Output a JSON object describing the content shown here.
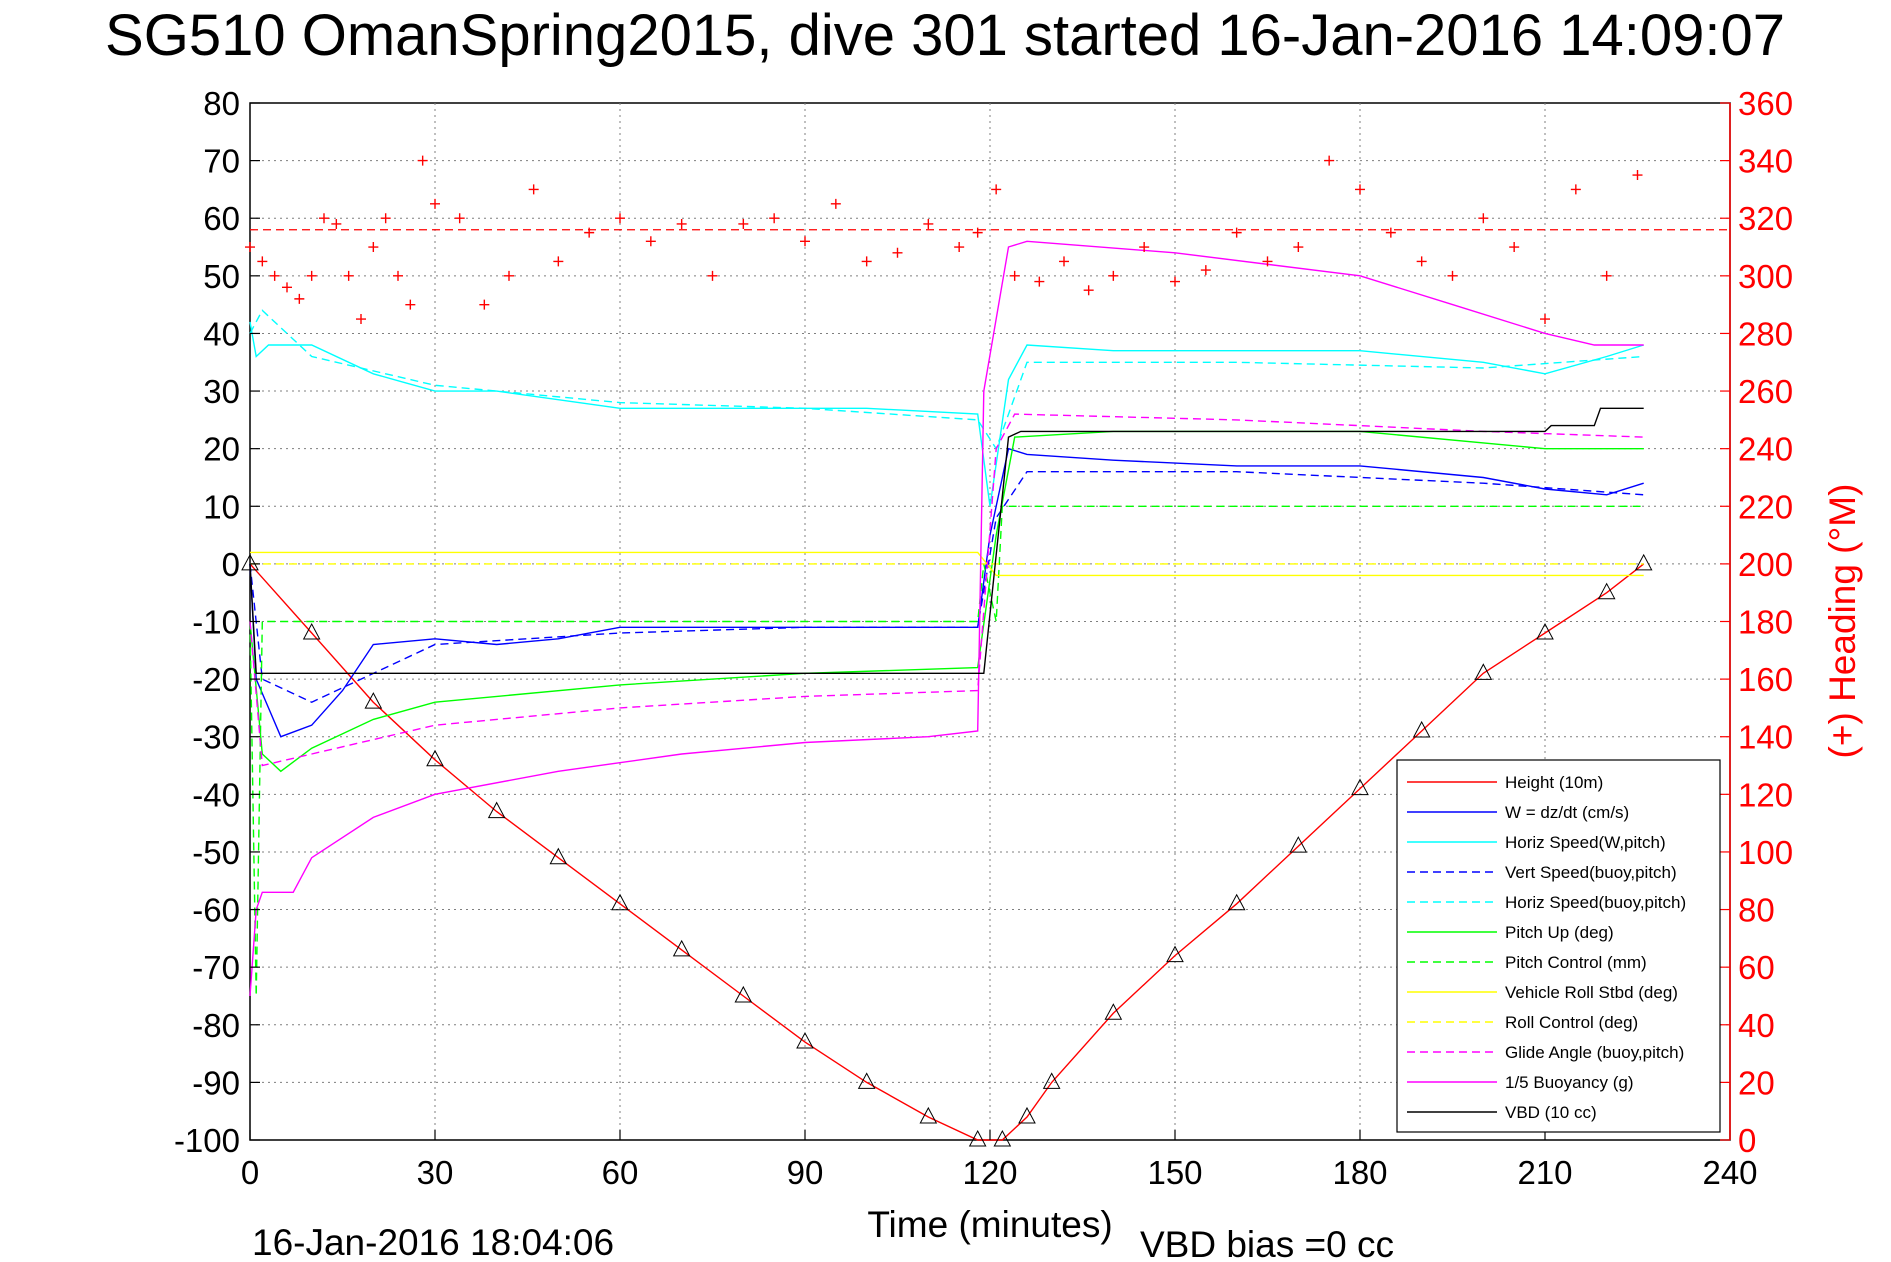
{
  "chart_data": {
    "type": "line",
    "title": "SG510 OmanSpring2015, dive 301 started 16-Jan-2016 14:09:07",
    "xlabel": "Time (minutes)",
    "ylabel_right": "(+) Heading (°M)",
    "footer_left": "16-Jan-2016 18:04:06",
    "footer_right": "VBD bias =0 cc",
    "xlim": [
      0,
      240
    ],
    "ylim_left": [
      -100,
      80
    ],
    "ylim_right": [
      0,
      360
    ],
    "xticks": [
      "0",
      "30",
      "60",
      "90",
      "120",
      "150",
      "180",
      "210",
      "240"
    ],
    "yticks_left": [
      "80",
      "70",
      "60",
      "50",
      "40",
      "30",
      "20",
      "10",
      "0",
      "-10",
      "-20",
      "-30",
      "-40",
      "-50",
      "-60",
      "-70",
      "-80",
      "-90",
      "-100"
    ],
    "yticks_right": [
      "360",
      "340",
      "320",
      "300",
      "280",
      "260",
      "240",
      "220",
      "200",
      "180",
      "160",
      "140",
      "120",
      "100",
      "80",
      "60",
      "40",
      "20",
      "0"
    ],
    "grid": true,
    "legend_position": "bottom-right",
    "heading_reference": 316,
    "series": [
      {
        "name": "Height (10m)",
        "color": "#ff0000",
        "style": "solid",
        "x": [
          0,
          10,
          20,
          30,
          40,
          50,
          60,
          70,
          80,
          90,
          100,
          110,
          118,
          122,
          126,
          130,
          140,
          150,
          160,
          170,
          180,
          190,
          200,
          210,
          220,
          226
        ],
        "y": [
          0,
          -12,
          -24,
          -34,
          -43,
          -51,
          -59,
          -67,
          -75,
          -83,
          -90,
          -96,
          -100,
          -100,
          -96,
          -90,
          -78,
          -68,
          -59,
          -49,
          -39,
          -29,
          -19,
          -12,
          -5,
          0
        ]
      },
      {
        "name": "W = dz/dt (cm/s)",
        "color": "#0000ff",
        "style": "solid",
        "x": [
          0,
          1,
          3,
          5,
          10,
          15,
          20,
          30,
          40,
          50,
          60,
          80,
          100,
          118,
          120,
          123,
          126,
          140,
          160,
          180,
          200,
          210,
          220,
          226
        ],
        "y": [
          0,
          -20,
          -25,
          -30,
          -28,
          -22,
          -14,
          -13,
          -14,
          -13,
          -11,
          -11,
          -11,
          -11,
          5,
          20,
          19,
          18,
          17,
          17,
          15,
          13,
          12,
          14
        ]
      },
      {
        "name": "Horiz Speed(W,pitch)",
        "color": "#00ffff",
        "style": "solid",
        "x": [
          0,
          1,
          3,
          10,
          20,
          30,
          40,
          60,
          80,
          100,
          118,
          120,
          123,
          126,
          140,
          160,
          180,
          200,
          210,
          220,
          226
        ],
        "y": [
          42,
          36,
          38,
          38,
          33,
          30,
          30,
          27,
          27,
          27,
          26,
          10,
          32,
          38,
          37,
          37,
          37,
          35,
          33,
          36,
          38
        ]
      },
      {
        "name": "Vert Speed(buoy,pitch)",
        "color": "#0000ff",
        "style": "dashed",
        "x": [
          0,
          2,
          10,
          30,
          60,
          90,
          118,
          121,
          126,
          160,
          200,
          226
        ],
        "y": [
          0,
          -20,
          -24,
          -14,
          -12,
          -11,
          -11,
          8,
          16,
          16,
          14,
          12
        ]
      },
      {
        "name": "Horiz Speed(buoy,pitch)",
        "color": "#00ffff",
        "style": "dashed",
        "x": [
          0,
          2,
          10,
          30,
          60,
          90,
          118,
          121,
          126,
          160,
          200,
          226
        ],
        "y": [
          40,
          44,
          36,
          31,
          28,
          27,
          25,
          20,
          35,
          35,
          34,
          36
        ]
      },
      {
        "name": "Pitch Up (deg)",
        "color": "#00ff00",
        "style": "solid",
        "x": [
          0,
          2,
          5,
          10,
          20,
          30,
          60,
          90,
          118,
          121,
          124,
          140,
          180,
          210,
          226
        ],
        "y": [
          -10,
          -33,
          -36,
          -32,
          -27,
          -24,
          -21,
          -19,
          -18,
          5,
          22,
          23,
          23,
          20,
          20
        ]
      },
      {
        "name": "Pitch Control (mm)",
        "color": "#00ff00",
        "style": "dashed",
        "x": [
          0,
          1,
          2,
          3,
          118,
          119,
          121,
          122,
          226
        ],
        "y": [
          -10,
          -75,
          -10,
          -10,
          -10,
          0,
          -10,
          10,
          10
        ]
      },
      {
        "name": "Vehicle Roll Stbd (deg)",
        "color": "#ffff00",
        "style": "solid",
        "x": [
          0,
          118,
          121,
          226
        ],
        "y": [
          2,
          2,
          -2,
          -2
        ]
      },
      {
        "name": "Roll Control (deg)",
        "color": "#ffff00",
        "style": "dashed",
        "x": [
          0,
          118,
          121,
          226
        ],
        "y": [
          0,
          0,
          0,
          0
        ]
      },
      {
        "name": "Glide Angle (buoy,pitch)",
        "color": "#ff00ff",
        "style": "dashed",
        "x": [
          0,
          2,
          10,
          30,
          60,
          90,
          118,
          121,
          124,
          160,
          200,
          226
        ],
        "y": [
          -10,
          -35,
          -33,
          -28,
          -25,
          -23,
          -22,
          20,
          26,
          25,
          23,
          22
        ]
      },
      {
        "name": "1/5 Buoyancy (g)",
        "color": "#ff00ff",
        "style": "solid",
        "x": [
          0,
          1,
          2,
          7,
          10,
          20,
          30,
          50,
          70,
          90,
          110,
          118,
          119,
          123,
          126,
          150,
          180,
          195,
          210,
          218,
          226
        ],
        "y": [
          -75,
          -60,
          -57,
          -57,
          -51,
          -44,
          -40,
          -36,
          -33,
          -31,
          -30,
          -29,
          30,
          55,
          56,
          54,
          50,
          45,
          40,
          38,
          38
        ]
      },
      {
        "name": "VBD (10 cc)",
        "color": "#000000",
        "style": "solid",
        "x": [
          0,
          1,
          2,
          118,
          119,
          123,
          125,
          210,
          211,
          218,
          219,
          226
        ],
        "y": [
          0,
          -19,
          -19,
          -19,
          -19,
          22,
          23,
          23,
          24,
          24,
          27,
          27
        ]
      }
    ],
    "heading_points": {
      "color": "#ff0000",
      "x": [
        0,
        2,
        4,
        6,
        8,
        10,
        12,
        14,
        16,
        18,
        20,
        22,
        24,
        26,
        28,
        30,
        34,
        38,
        42,
        46,
        50,
        55,
        60,
        65,
        70,
        75,
        80,
        85,
        90,
        95,
        100,
        105,
        110,
        115,
        118,
        121,
        124,
        128,
        132,
        136,
        140,
        145,
        150,
        155,
        160,
        165,
        170,
        175,
        180,
        185,
        190,
        195,
        200,
        205,
        210,
        215,
        220,
        225
      ],
      "y": [
        310,
        305,
        300,
        296,
        292,
        300,
        320,
        318,
        300,
        285,
        310,
        320,
        300,
        290,
        340,
        325,
        320,
        290,
        300,
        330,
        305,
        315,
        320,
        312,
        318,
        300,
        318,
        320,
        312,
        325,
        305,
        308,
        318,
        310,
        315,
        330,
        300,
        298,
        305,
        295,
        300,
        310,
        298,
        302,
        315,
        305,
        310,
        340,
        330,
        315,
        305,
        300,
        320,
        310,
        285,
        330,
        300,
        335
      ]
    }
  }
}
